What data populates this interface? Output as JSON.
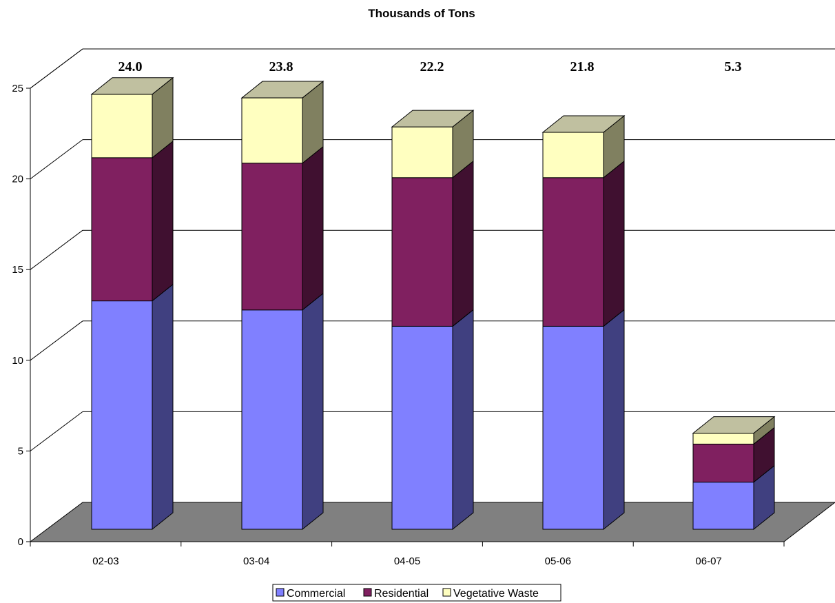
{
  "chart_data": {
    "type": "bar",
    "stacked": true,
    "title": "Thousands of Tons",
    "categories": [
      "02-03",
      "03-04",
      "04-05",
      "05-06",
      "06-07"
    ],
    "series": [
      {
        "name": "Commercial",
        "values": [
          12.6,
          12.1,
          11.2,
          11.2,
          2.6
        ],
        "color": "#8080FF",
        "side": "#404080",
        "top": "#A0A0FF"
      },
      {
        "name": "Residential",
        "values": [
          7.9,
          8.1,
          8.2,
          8.2,
          2.1
        ],
        "color": "#802060",
        "side": "#401030",
        "top": "#A04080"
      },
      {
        "name": "Vegetative Waste",
        "values": [
          3.5,
          3.6,
          2.8,
          2.5,
          0.6
        ],
        "color": "#FFFFC0",
        "side": "#808060",
        "top": "#C0C0A0"
      }
    ],
    "totals": [
      "24.0",
      "23.8",
      "22.2",
      "21.8",
      "5.3"
    ],
    "y_ticks": [
      "0",
      "5",
      "10",
      "15",
      "20",
      "25"
    ],
    "ylim": [
      0,
      25
    ],
    "grid": true,
    "legend_position": "bottom",
    "floor_color": "#808080"
  }
}
